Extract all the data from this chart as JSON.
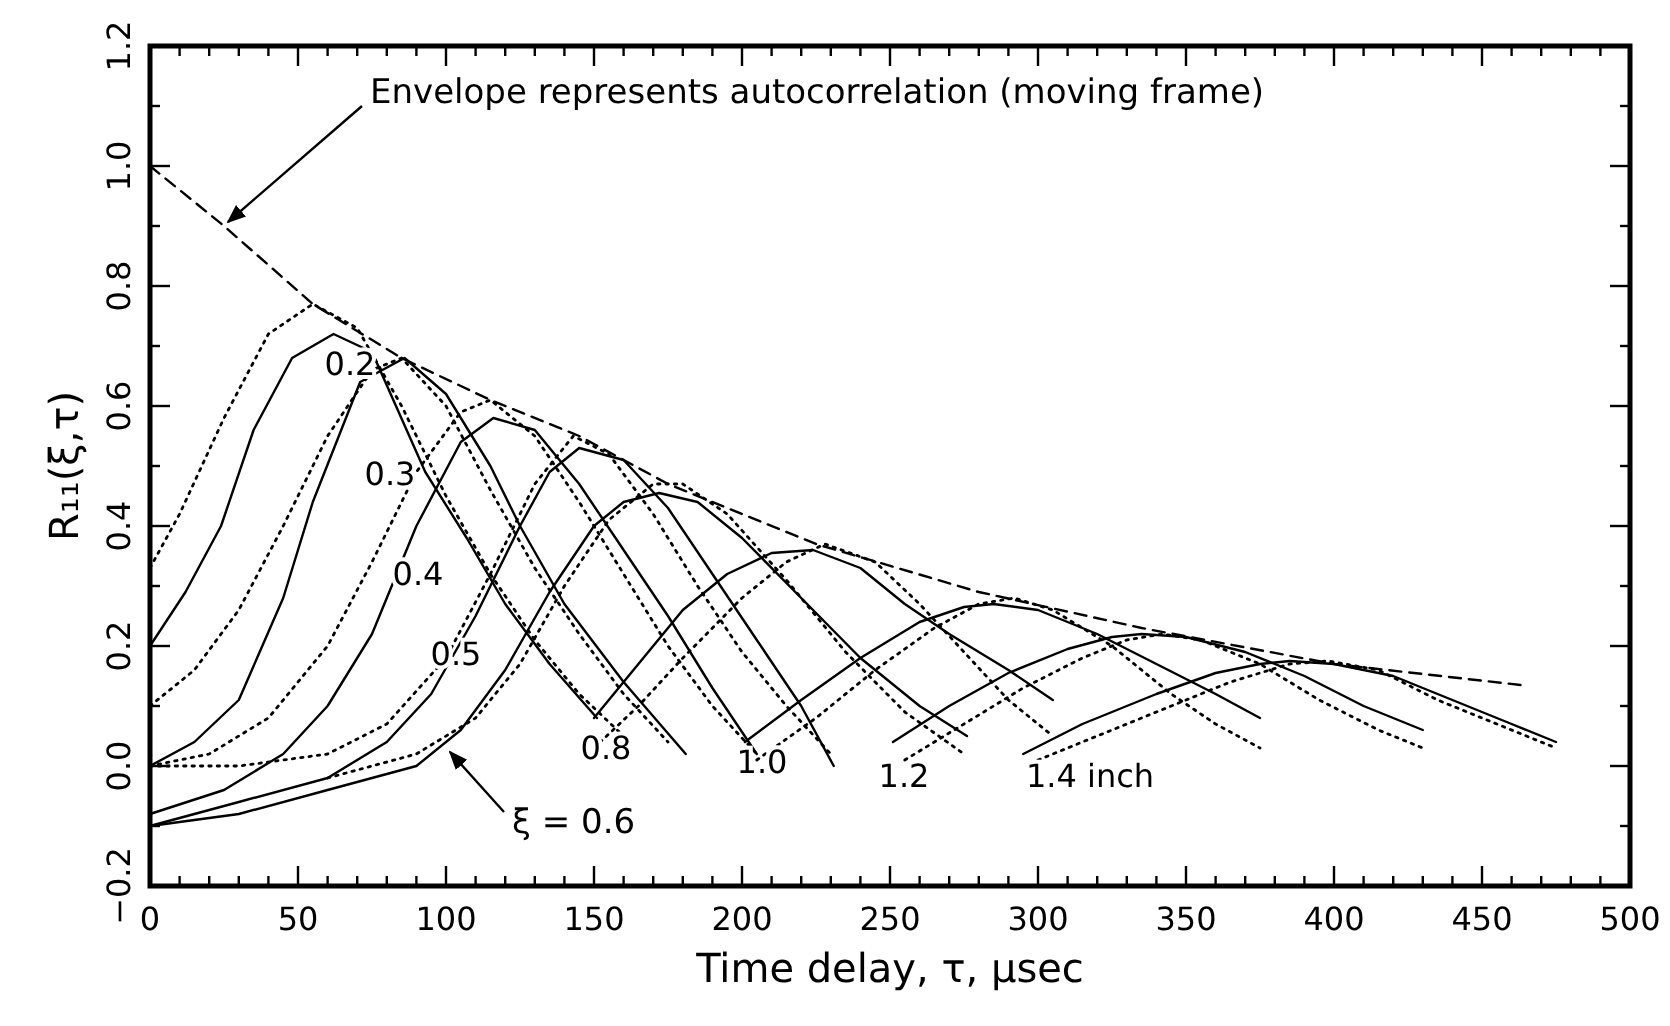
{
  "chart_data": {
    "type": "line",
    "xlabel": "Time delay, τ, μsec",
    "ylabel": "R₁₁(ξ,τ)",
    "xlim": [
      0,
      500
    ],
    "ylim": [
      -0.2,
      1.2
    ],
    "xticks": [
      0,
      {
        "value": 10,
        "label": null
      },
      {
        "value": 20,
        "label": null
      },
      {
        "value": 30,
        "label": null
      },
      {
        "value": 40,
        "label": null
      },
      50,
      {
        "value": 60,
        "label": null
      },
      {
        "value": 70,
        "label": null
      },
      {
        "value": 80,
        "label": null
      },
      {
        "value": 90,
        "label": null
      },
      100,
      {
        "value": 110,
        "label": null
      },
      {
        "value": 120,
        "label": null
      },
      {
        "value": 130,
        "label": null
      },
      {
        "value": 140,
        "label": null
      },
      150,
      {
        "value": 160,
        "label": null
      },
      {
        "value": 170,
        "label": null
      },
      {
        "value": 180,
        "label": null
      },
      {
        "value": 190,
        "label": null
      },
      200,
      {
        "value": 210,
        "label": null
      },
      {
        "value": 220,
        "label": null
      },
      {
        "value": 230,
        "label": null
      },
      {
        "value": 240,
        "label": null
      },
      250,
      {
        "value": 260,
        "label": null
      },
      {
        "value": 270,
        "label": null
      },
      {
        "value": 280,
        "label": null
      },
      {
        "value": 290,
        "label": null
      },
      300,
      {
        "value": 310,
        "label": null
      },
      {
        "value": 320,
        "label": null
      },
      {
        "value": 330,
        "label": null
      },
      {
        "value": 340,
        "label": null
      },
      350,
      {
        "value": 360,
        "label": null
      },
      {
        "value": 370,
        "label": null
      },
      {
        "value": 380,
        "label": null
      },
      {
        "value": 390,
        "label": null
      },
      400,
      {
        "value": 410,
        "label": null
      },
      {
        "value": 420,
        "label": null
      },
      {
        "value": 430,
        "label": null
      },
      {
        "value": 440,
        "label": null
      },
      450,
      {
        "value": 460,
        "label": null
      },
      {
        "value": 470,
        "label": null
      },
      {
        "value": 480,
        "label": null
      },
      {
        "value": 490,
        "label": null
      },
      500
    ],
    "yticks": [
      {
        "value": -0.2,
        "label": "−0.2"
      },
      {
        "value": -0.1,
        "label": null
      },
      {
        "value": 0,
        "label": "0.0"
      },
      {
        "value": 0.1,
        "label": null
      },
      {
        "value": 0.2,
        "label": "0.2"
      },
      {
        "value": 0.3,
        "label": null
      },
      {
        "value": 0.4,
        "label": "0.4"
      },
      {
        "value": 0.5,
        "label": null
      },
      {
        "value": 0.6,
        "label": "0.6"
      },
      {
        "value": 0.7,
        "label": null
      },
      {
        "value": 0.8,
        "label": "0.8"
      },
      {
        "value": 0.9,
        "label": null
      },
      {
        "value": 1.0,
        "label": "1.0"
      },
      {
        "value": 1.1,
        "label": null
      },
      {
        "value": 1.2,
        "label": "1.2"
      }
    ],
    "series": [
      {
        "color": "#000000",
        "line_style": "solid",
        "x": [
          0,
          12,
          24,
          35,
          48,
          62,
          75,
          93,
          107,
          120,
          135,
          151
        ],
        "values": [
          0.2,
          0.29,
          0.4,
          0.56,
          0.68,
          0.72,
          0.69,
          0.49,
          0.38,
          0.27,
          0.17,
          0.08
        ]
      },
      {
        "color": "#000000",
        "line_style": "solid",
        "x": [
          0,
          15,
          30,
          45,
          55,
          71,
          86,
          100,
          115,
          125,
          140,
          160,
          181
        ],
        "values": [
          0.0,
          0.04,
          0.11,
          0.28,
          0.44,
          0.64,
          0.68,
          0.62,
          0.5,
          0.4,
          0.27,
          0.14,
          0.02
        ]
      },
      {
        "color": "#000000",
        "line_style": "solid",
        "x": [
          0,
          25,
          45,
          60,
          75,
          90,
          105,
          116,
          130,
          145,
          160,
          175,
          190,
          205
        ],
        "values": [
          -0.08,
          -0.04,
          0.02,
          0.1,
          0.22,
          0.4,
          0.54,
          0.58,
          0.56,
          0.47,
          0.36,
          0.25,
          0.13,
          0.02
        ]
      },
      {
        "color": "#000000",
        "line_style": "solid",
        "x": [
          0,
          30,
          60,
          80,
          95,
          110,
          125,
          135,
          145,
          160,
          175,
          190,
          205,
          220,
          231
        ],
        "values": [
          -0.1,
          -0.06,
          -0.02,
          0.04,
          0.12,
          0.25,
          0.4,
          0.49,
          0.53,
          0.51,
          0.43,
          0.32,
          0.21,
          0.1,
          0.0
        ]
      },
      {
        "color": "#000000",
        "line_style": "solid",
        "x": [
          0,
          30,
          60,
          90,
          105,
          120,
          135,
          150,
          160,
          172,
          185,
          200,
          220,
          240,
          260,
          276
        ],
        "values": [
          -0.1,
          -0.08,
          -0.04,
          0.0,
          0.06,
          0.16,
          0.29,
          0.4,
          0.44,
          0.455,
          0.44,
          0.38,
          0.28,
          0.18,
          0.1,
          0.05
        ]
      },
      {
        "color": "#000000",
        "line_style": "solid",
        "x": [
          150,
          165,
          180,
          195,
          210,
          224,
          240,
          255,
          270,
          290,
          305
        ],
        "values": [
          0.08,
          0.17,
          0.26,
          0.32,
          0.355,
          0.36,
          0.33,
          0.27,
          0.22,
          0.16,
          0.11
        ]
      },
      {
        "color": "#000000",
        "line_style": "solid",
        "x": [
          201,
          220,
          240,
          260,
          275,
          285,
          300,
          320,
          340,
          360,
          375
        ],
        "values": [
          0.04,
          0.11,
          0.18,
          0.24,
          0.265,
          0.27,
          0.26,
          0.22,
          0.17,
          0.12,
          0.08
        ]
      },
      {
        "color": "#000000",
        "line_style": "solid",
        "x": [
          251,
          270,
          290,
          310,
          325,
          335,
          350,
          370,
          390,
          410,
          430
        ],
        "values": [
          0.04,
          0.1,
          0.155,
          0.195,
          0.215,
          0.22,
          0.215,
          0.19,
          0.15,
          0.1,
          0.06
        ]
      },
      {
        "color": "#000000",
        "line_style": "solid",
        "x": [
          295,
          315,
          340,
          360,
          375,
          385,
          400,
          420,
          440,
          460,
          475
        ],
        "values": [
          0.02,
          0.07,
          0.12,
          0.155,
          0.17,
          0.175,
          0.17,
          0.15,
          0.11,
          0.07,
          0.04
        ]
      },
      {
        "color": "#000000",
        "line_style": "dotted",
        "x": [
          0,
          10,
          25,
          40,
          55,
          70,
          85,
          100,
          115,
          130,
          145,
          160
        ],
        "values": [
          0.33,
          0.42,
          0.58,
          0.72,
          0.77,
          0.73,
          0.6,
          0.45,
          0.32,
          0.21,
          0.12,
          0.05
        ]
      },
      {
        "color": "#000000",
        "line_style": "dotted",
        "x": [
          0,
          15,
          30,
          45,
          60,
          75,
          85,
          100,
          115,
          130,
          145,
          160,
          175
        ],
        "values": [
          0.1,
          0.16,
          0.26,
          0.4,
          0.55,
          0.66,
          0.68,
          0.6,
          0.46,
          0.33,
          0.22,
          0.12,
          0.04
        ]
      },
      {
        "color": "#000000",
        "line_style": "dotted",
        "x": [
          0,
          20,
          40,
          60,
          75,
          90,
          105,
          115,
          130,
          145,
          160,
          175,
          190,
          205
        ],
        "values": [
          0.0,
          0.02,
          0.08,
          0.2,
          0.34,
          0.49,
          0.59,
          0.61,
          0.55,
          0.44,
          0.32,
          0.2,
          0.1,
          0.02
        ]
      },
      {
        "color": "#000000",
        "line_style": "dotted",
        "x": [
          0,
          30,
          60,
          80,
          100,
          115,
          130,
          143,
          155,
          170,
          185,
          200,
          215,
          230
        ],
        "values": [
          0.0,
          0.0,
          0.02,
          0.07,
          0.18,
          0.32,
          0.47,
          0.55,
          0.52,
          0.42,
          0.3,
          0.19,
          0.1,
          0.02
        ]
      },
      {
        "color": "#000000",
        "line_style": "dotted",
        "x": [
          60,
          90,
          110,
          125,
          140,
          155,
          170,
          180,
          195,
          215,
          235,
          255,
          275
        ],
        "values": [
          -0.02,
          0.02,
          0.08,
          0.17,
          0.3,
          0.41,
          0.47,
          0.47,
          0.42,
          0.31,
          0.19,
          0.09,
          0.02
        ]
      },
      {
        "color": "#000000",
        "line_style": "dotted",
        "x": [
          150,
          165,
          180,
          200,
          215,
          228,
          245,
          260,
          275,
          290,
          305
        ],
        "values": [
          0.03,
          0.1,
          0.18,
          0.28,
          0.34,
          0.37,
          0.34,
          0.27,
          0.19,
          0.11,
          0.05
        ]
      },
      {
        "color": "#000000",
        "line_style": "dotted",
        "x": [
          205,
          225,
          245,
          265,
          280,
          292,
          305,
          325,
          345,
          360,
          375
        ],
        "values": [
          0.01,
          0.08,
          0.16,
          0.23,
          0.27,
          0.28,
          0.26,
          0.2,
          0.12,
          0.07,
          0.03
        ]
      },
      {
        "color": "#000000",
        "line_style": "dotted",
        "x": [
          255,
          275,
          295,
          315,
          330,
          342,
          355,
          375,
          395,
          415,
          430
        ],
        "values": [
          0.01,
          0.07,
          0.13,
          0.18,
          0.21,
          0.22,
          0.21,
          0.17,
          0.11,
          0.06,
          0.03
        ]
      },
      {
        "color": "#000000",
        "line_style": "dotted",
        "x": [
          300,
          320,
          345,
          365,
          385,
          398,
          415,
          435,
          455,
          475
        ],
        "values": [
          0.01,
          0.05,
          0.1,
          0.14,
          0.17,
          0.175,
          0.16,
          0.11,
          0.07,
          0.03
        ]
      },
      {
        "color": "#000000",
        "line_style": "dashed",
        "x": [
          0,
          25,
          55,
          85,
          115,
          145,
          175,
          225,
          280,
          335,
          400,
          463
        ],
        "values": [
          1.0,
          0.9,
          0.77,
          0.68,
          0.61,
          0.55,
          0.47,
          0.37,
          0.29,
          0.23,
          0.17,
          0.135
        ]
      }
    ],
    "annotations": [
      {
        "text": "Envelope represents autocorrelation (moving frame)",
        "x": 25,
        "y": 0.9
      },
      "0.2",
      "0.3",
      "0.4",
      "0.5",
      {
        "text": "ξ = 0.6",
        "x": 100,
        "y": 0.03
      },
      "0.8",
      "1.0",
      "1.2",
      "1.4 inch"
    ]
  }
}
